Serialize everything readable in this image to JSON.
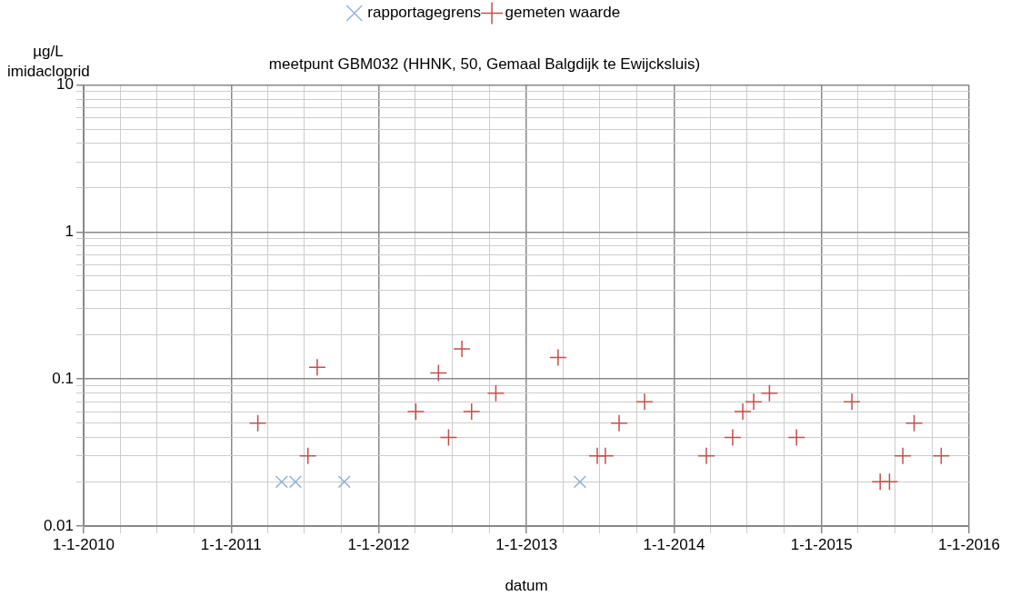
{
  "chart_data": {
    "type": "scatter",
    "title": "meetpunt GBM032 (HHNK, 50, Gemaal Balgdijk te Ewijcksluis)",
    "xlabel": "datum",
    "ylabel": "µg/L imidacloprid",
    "log": "y",
    "grid": true,
    "legend": "top",
    "xlim": [
      "2010-01-01",
      "2016-01-01"
    ],
    "xticks": [
      {
        "value": "2010-01-01",
        "label": "1-1-2010"
      },
      {
        "value": "2010-04-01",
        "label": null
      },
      {
        "value": "2010-07-01",
        "label": null
      },
      {
        "value": "2010-10-01",
        "label": null
      },
      {
        "value": "2011-01-01",
        "label": "1-1-2011"
      },
      {
        "value": "2011-04-01",
        "label": null
      },
      {
        "value": "2011-07-01",
        "label": null
      },
      {
        "value": "2011-10-01",
        "label": null
      },
      {
        "value": "2012-01-01",
        "label": "1-1-2012"
      },
      {
        "value": "2012-04-01",
        "label": null
      },
      {
        "value": "2012-07-01",
        "label": null
      },
      {
        "value": "2012-10-01",
        "label": null
      },
      {
        "value": "2013-01-01",
        "label": "1-1-2013"
      },
      {
        "value": "2013-04-01",
        "label": null
      },
      {
        "value": "2013-07-01",
        "label": null
      },
      {
        "value": "2013-10-01",
        "label": null
      },
      {
        "value": "2014-01-01",
        "label": "1-1-2014"
      },
      {
        "value": "2014-04-01",
        "label": null
      },
      {
        "value": "2014-07-01",
        "label": null
      },
      {
        "value": "2014-10-01",
        "label": null
      },
      {
        "value": "2015-01-01",
        "label": "1-1-2015"
      },
      {
        "value": "2015-04-01",
        "label": null
      },
      {
        "value": "2015-07-01",
        "label": null
      },
      {
        "value": "2015-10-01",
        "label": null
      },
      {
        "value": "2016-01-01",
        "label": "1-1-2016"
      }
    ],
    "ylim": [
      0.01,
      10
    ],
    "yticks": [
      0.01,
      {
        "value": 0.02,
        "label": null
      },
      {
        "value": 0.03,
        "label": null
      },
      {
        "value": 0.04,
        "label": null
      },
      {
        "value": 0.05,
        "label": null
      },
      {
        "value": 0.06,
        "label": null
      },
      {
        "value": 0.07,
        "label": null
      },
      {
        "value": 0.08,
        "label": null
      },
      {
        "value": 0.09,
        "label": null
      },
      0.1,
      {
        "value": 0.2,
        "label": null
      },
      {
        "value": 0.3,
        "label": null
      },
      {
        "value": 0.4,
        "label": null
      },
      {
        "value": 0.5,
        "label": null
      },
      {
        "value": 0.6,
        "label": null
      },
      {
        "value": 0.7,
        "label": null
      },
      {
        "value": 0.8,
        "label": null
      },
      {
        "value": 0.9,
        "label": null
      },
      1,
      {
        "value": 2,
        "label": null
      },
      {
        "value": 3,
        "label": null
      },
      {
        "value": 4,
        "label": null
      },
      {
        "value": 5,
        "label": null
      },
      {
        "value": 6,
        "label": null
      },
      {
        "value": 7,
        "label": null
      },
      {
        "value": 8,
        "label": null
      },
      {
        "value": 9,
        "label": null
      },
      10
    ],
    "series": [
      {
        "name": "rapportagegrens",
        "color": "#95b3d7",
        "marker": "x",
        "x": [
          "2011-05-06",
          "2011-06-09",
          "2011-10-08",
          "2013-05-13"
        ],
        "values": [
          0.02,
          0.02,
          0.02,
          0.02
        ]
      },
      {
        "name": "gemeten waarde",
        "color": "#c0504d",
        "marker": "cross",
        "x": [
          "2011-03-08",
          "2011-07-10",
          "2011-08-02",
          "2012-04-02",
          "2012-05-28",
          "2012-06-22",
          "2012-07-25",
          "2012-08-18",
          "2012-10-17",
          "2013-03-20",
          "2013-06-25",
          "2013-07-15",
          "2013-08-18",
          "2013-10-20",
          "2014-03-22",
          "2014-05-26",
          "2014-06-20",
          "2014-07-17",
          "2014-08-25",
          "2014-10-31",
          "2015-03-17",
          "2015-05-26",
          "2015-06-18",
          "2015-07-21",
          "2015-08-18",
          "2015-10-24"
        ],
        "values": [
          0.05,
          0.03,
          0.12,
          0.06,
          0.11,
          0.04,
          0.16,
          0.06,
          0.08,
          0.14,
          0.03,
          0.03,
          0.05,
          0.07,
          0.03,
          0.04,
          0.06,
          0.07,
          0.08,
          0.04,
          0.07,
          0.02,
          0.02,
          0.03,
          0.05,
          0.03
        ]
      }
    ]
  }
}
